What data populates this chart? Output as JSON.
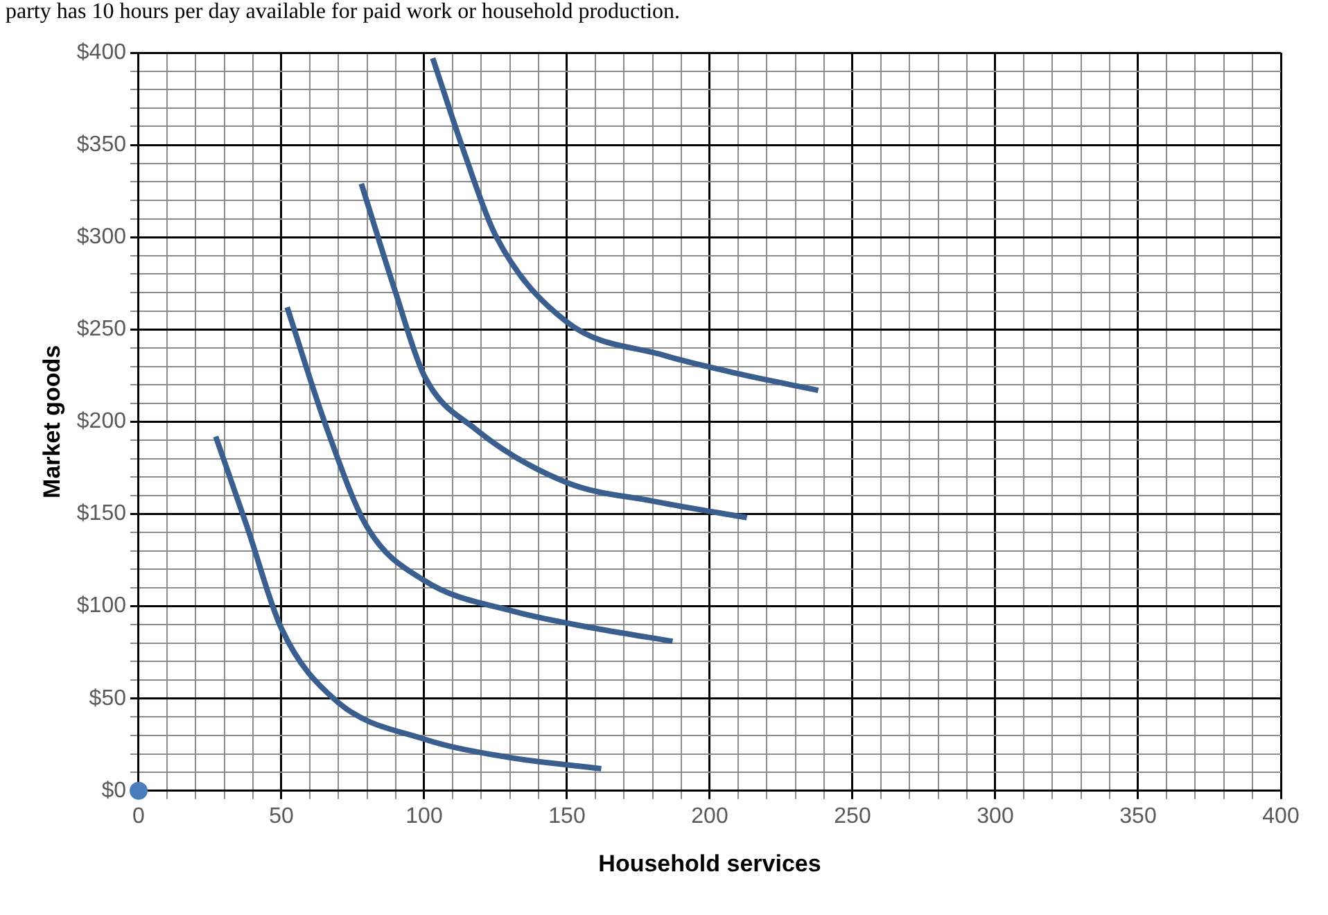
{
  "chart_data": {
    "type": "line",
    "xlabel": "Household services",
    "ylabel": "Market goods",
    "annotations": [
      "party has 10 hours per day available for paid work or household production."
    ],
    "xlim": [
      0,
      400
    ],
    "ylim": [
      0,
      400
    ],
    "xticks": [
      0,
      {
        "value": 10,
        "label": null
      },
      {
        "value": 20,
        "label": null
      },
      {
        "value": 30,
        "label": null
      },
      {
        "value": 40,
        "label": null
      },
      50,
      {
        "value": 60,
        "label": null
      },
      {
        "value": 70,
        "label": null
      },
      {
        "value": 80,
        "label": null
      },
      {
        "value": 90,
        "label": null
      },
      100,
      {
        "value": 110,
        "label": null
      },
      {
        "value": 120,
        "label": null
      },
      {
        "value": 130,
        "label": null
      },
      {
        "value": 140,
        "label": null
      },
      150,
      {
        "value": 160,
        "label": null
      },
      {
        "value": 170,
        "label": null
      },
      {
        "value": 180,
        "label": null
      },
      {
        "value": 190,
        "label": null
      },
      200,
      {
        "value": 210,
        "label": null
      },
      {
        "value": 220,
        "label": null
      },
      {
        "value": 230,
        "label": null
      },
      {
        "value": 240,
        "label": null
      },
      250,
      {
        "value": 260,
        "label": null
      },
      {
        "value": 270,
        "label": null
      },
      {
        "value": 280,
        "label": null
      },
      {
        "value": 290,
        "label": null
      },
      300,
      {
        "value": 310,
        "label": null
      },
      {
        "value": 320,
        "label": null
      },
      {
        "value": 330,
        "label": null
      },
      {
        "value": 340,
        "label": null
      },
      350,
      {
        "value": 360,
        "label": null
      },
      {
        "value": 370,
        "label": null
      },
      {
        "value": 380,
        "label": null
      },
      {
        "value": 390,
        "label": null
      },
      400
    ],
    "yticks": [
      {
        "value": 0,
        "label": "$0"
      },
      {
        "value": 10,
        "label": null
      },
      {
        "value": 20,
        "label": null
      },
      {
        "value": 30,
        "label": null
      },
      {
        "value": 40,
        "label": null
      },
      {
        "value": 50,
        "label": "$50"
      },
      {
        "value": 60,
        "label": null
      },
      {
        "value": 70,
        "label": null
      },
      {
        "value": 80,
        "label": null
      },
      {
        "value": 90,
        "label": null
      },
      {
        "value": 100,
        "label": "$100"
      },
      {
        "value": 110,
        "label": null
      },
      {
        "value": 120,
        "label": null
      },
      {
        "value": 130,
        "label": null
      },
      {
        "value": 140,
        "label": null
      },
      {
        "value": 150,
        "label": "$150"
      },
      {
        "value": 160,
        "label": null
      },
      {
        "value": 170,
        "label": null
      },
      {
        "value": 180,
        "label": null
      },
      {
        "value": 190,
        "label": null
      },
      {
        "value": 200,
        "label": "$200"
      },
      {
        "value": 210,
        "label": null
      },
      {
        "value": 220,
        "label": null
      },
      {
        "value": 230,
        "label": null
      },
      {
        "value": 240,
        "label": null
      },
      {
        "value": 250,
        "label": "$250"
      },
      {
        "value": 260,
        "label": null
      },
      {
        "value": 270,
        "label": null
      },
      {
        "value": 280,
        "label": null
      },
      {
        "value": 290,
        "label": null
      },
      {
        "value": 300,
        "label": "$300"
      },
      {
        "value": 310,
        "label": null
      },
      {
        "value": 320,
        "label": null
      },
      {
        "value": 330,
        "label": null
      },
      {
        "value": 340,
        "label": null
      },
      {
        "value": 350,
        "label": "$350"
      },
      {
        "value": 360,
        "label": null
      },
      {
        "value": 370,
        "label": null
      },
      {
        "value": 380,
        "label": null
      },
      {
        "value": 390,
        "label": null
      },
      {
        "value": 400,
        "label": "$400"
      }
    ],
    "grid": true,
    "legend": false,
    "series": [
      {
        "type": "line",
        "color": "#3a5f8f",
        "x": [
          27,
          38,
          50,
          69,
          100,
          130,
          162
        ],
        "values": [
          192,
          143,
          88,
          49,
          28,
          18,
          12
        ]
      },
      {
        "type": "line",
        "color": "#3a5f8f",
        "x": [
          52,
          66,
          80,
          100,
          132,
          160,
          187
        ],
        "values": [
          262,
          196,
          143,
          114,
          97,
          88,
          81
        ]
      },
      {
        "type": "line",
        "color": "#3a5f8f",
        "x": [
          78,
          90,
          100,
          118,
          150,
          180,
          213
        ],
        "values": [
          329,
          270,
          225,
          196,
          167,
          157,
          148
        ]
      },
      {
        "type": "line",
        "color": "#3a5f8f",
        "x": [
          103,
          114,
          125,
          150,
          184,
          210,
          238
        ],
        "values": [
          397,
          346,
          301,
          254,
          236,
          226,
          217
        ]
      },
      {
        "type": "scatter",
        "color": "#4a7ebb",
        "marker": "circle",
        "x": [
          0
        ],
        "values": [
          0
        ]
      }
    ]
  }
}
